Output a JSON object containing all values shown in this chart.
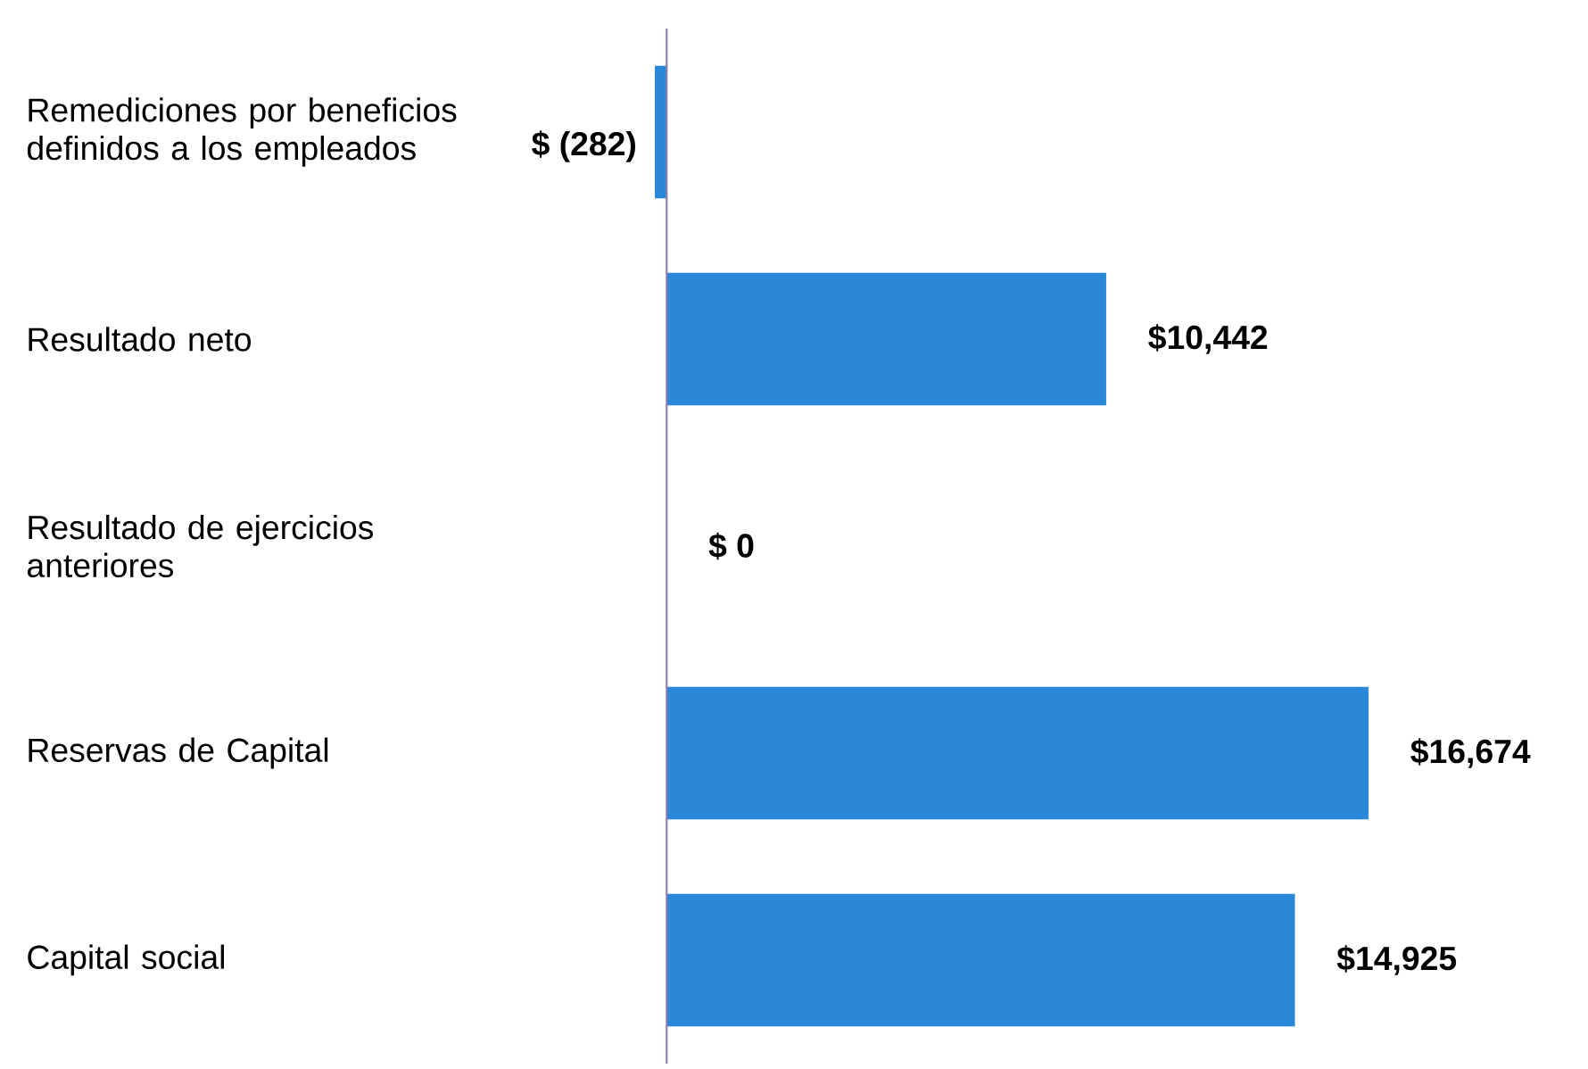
{
  "chart_data": {
    "type": "bar",
    "orientation": "horizontal",
    "categories": [
      "Remediciones por beneficios definidos a los empleados",
      "Resultado neto",
      "Resultado de ejercicios anteriores",
      "Reservas de Capital",
      "Capital social"
    ],
    "values": [
      -282,
      10442,
      0,
      16674,
      14925
    ],
    "value_labels": [
      "$ (282)",
      "$10,442",
      "$ 0",
      "$16,674",
      "$14,925"
    ],
    "color": "#2b88d8",
    "ref_lines": [
      {
        "axis": "x",
        "value": 0,
        "color": "#8a7fa8"
      }
    ]
  }
}
